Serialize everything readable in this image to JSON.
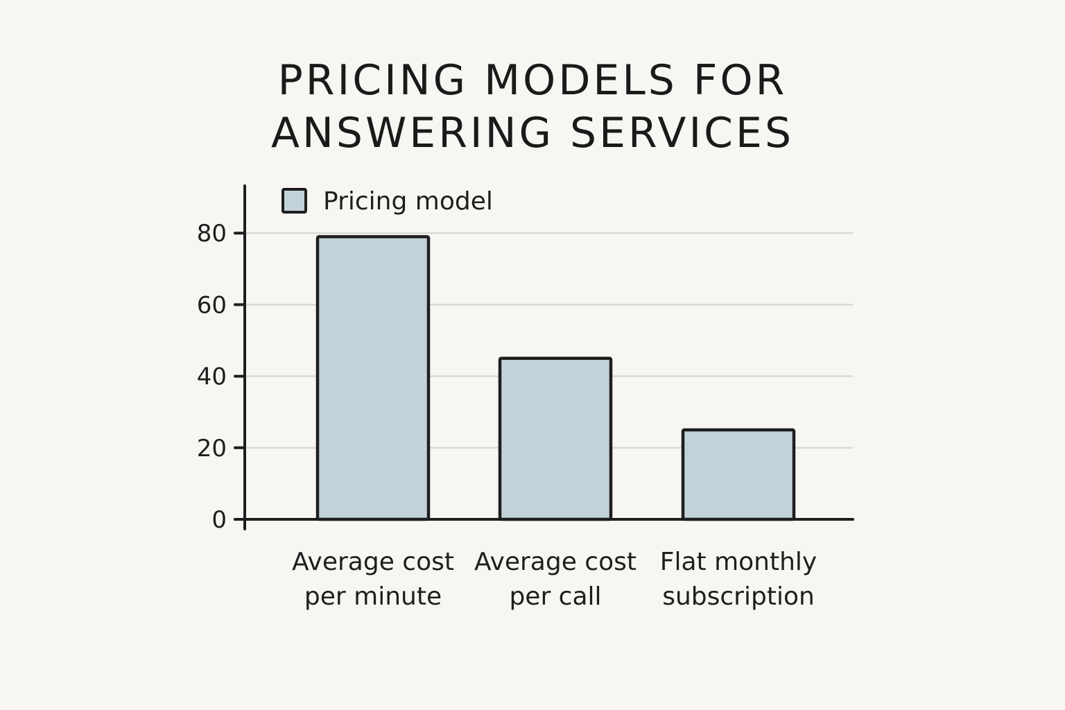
{
  "chart_data": {
    "type": "bar",
    "title_lines": [
      "Pricing models for",
      "answering services"
    ],
    "categories": [
      [
        "Average cost",
        "per minute"
      ],
      [
        "Average cost",
        "per call"
      ],
      [
        "Flat monthly",
        "subscription"
      ]
    ],
    "series": [
      {
        "name": "Pricing model",
        "values": [
          79,
          45,
          25
        ]
      }
    ],
    "xlabel": "",
    "ylabel": "",
    "ylim": [
      0,
      92
    ],
    "yticks": [
      0,
      20,
      40,
      60,
      80
    ],
    "grid": true,
    "legend_position": "top-left",
    "colors": {
      "bar_fill": "#c2d2d8",
      "stroke": "#1e1e1e",
      "grid": "#d9d9d5",
      "background": "#f7f6f2"
    }
  }
}
